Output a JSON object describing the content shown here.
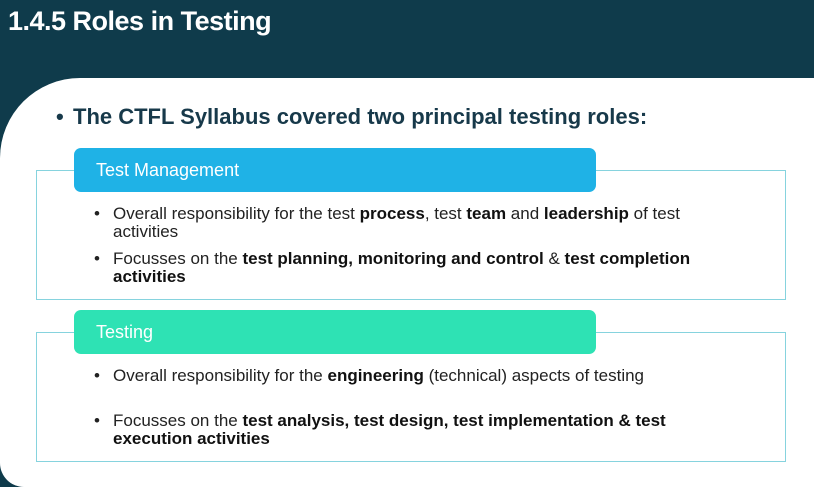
{
  "header": {
    "title": "1.4.5 Roles in Testing"
  },
  "intro": "The CTFL Syllabus covered two principal testing roles:",
  "roles": [
    {
      "label": "Test Management",
      "color": "#1fb2e6",
      "bullets": [
        [
          {
            "text": "Overall responsibility for the test ",
            "bold": false
          },
          {
            "text": "process",
            "bold": true
          },
          {
            "text": ", test ",
            "bold": false
          },
          {
            "text": "team",
            "bold": true
          },
          {
            "text": " and ",
            "bold": false
          },
          {
            "text": "leadership",
            "bold": true
          },
          {
            "text": " of test activities",
            "bold": false
          }
        ],
        [
          {
            "text": "Focusses on the ",
            "bold": false
          },
          {
            "text": "test planning, monitoring and control",
            "bold": true
          },
          {
            "text": " & ",
            "bold": false
          },
          {
            "text": "test completion activities",
            "bold": true
          }
        ]
      ]
    },
    {
      "label": "Testing",
      "color": "#2ee2b4",
      "bullets": [
        [
          {
            "text": "Overall responsibility for the ",
            "bold": false
          },
          {
            "text": "engineering",
            "bold": true
          },
          {
            "text": " (technical) aspects of testing",
            "bold": false
          }
        ],
        [
          {
            "text": "Focusses on the ",
            "bold": false
          },
          {
            "text": "test analysis, test design, test implementation & test execution activities",
            "bold": true
          }
        ]
      ]
    }
  ]
}
